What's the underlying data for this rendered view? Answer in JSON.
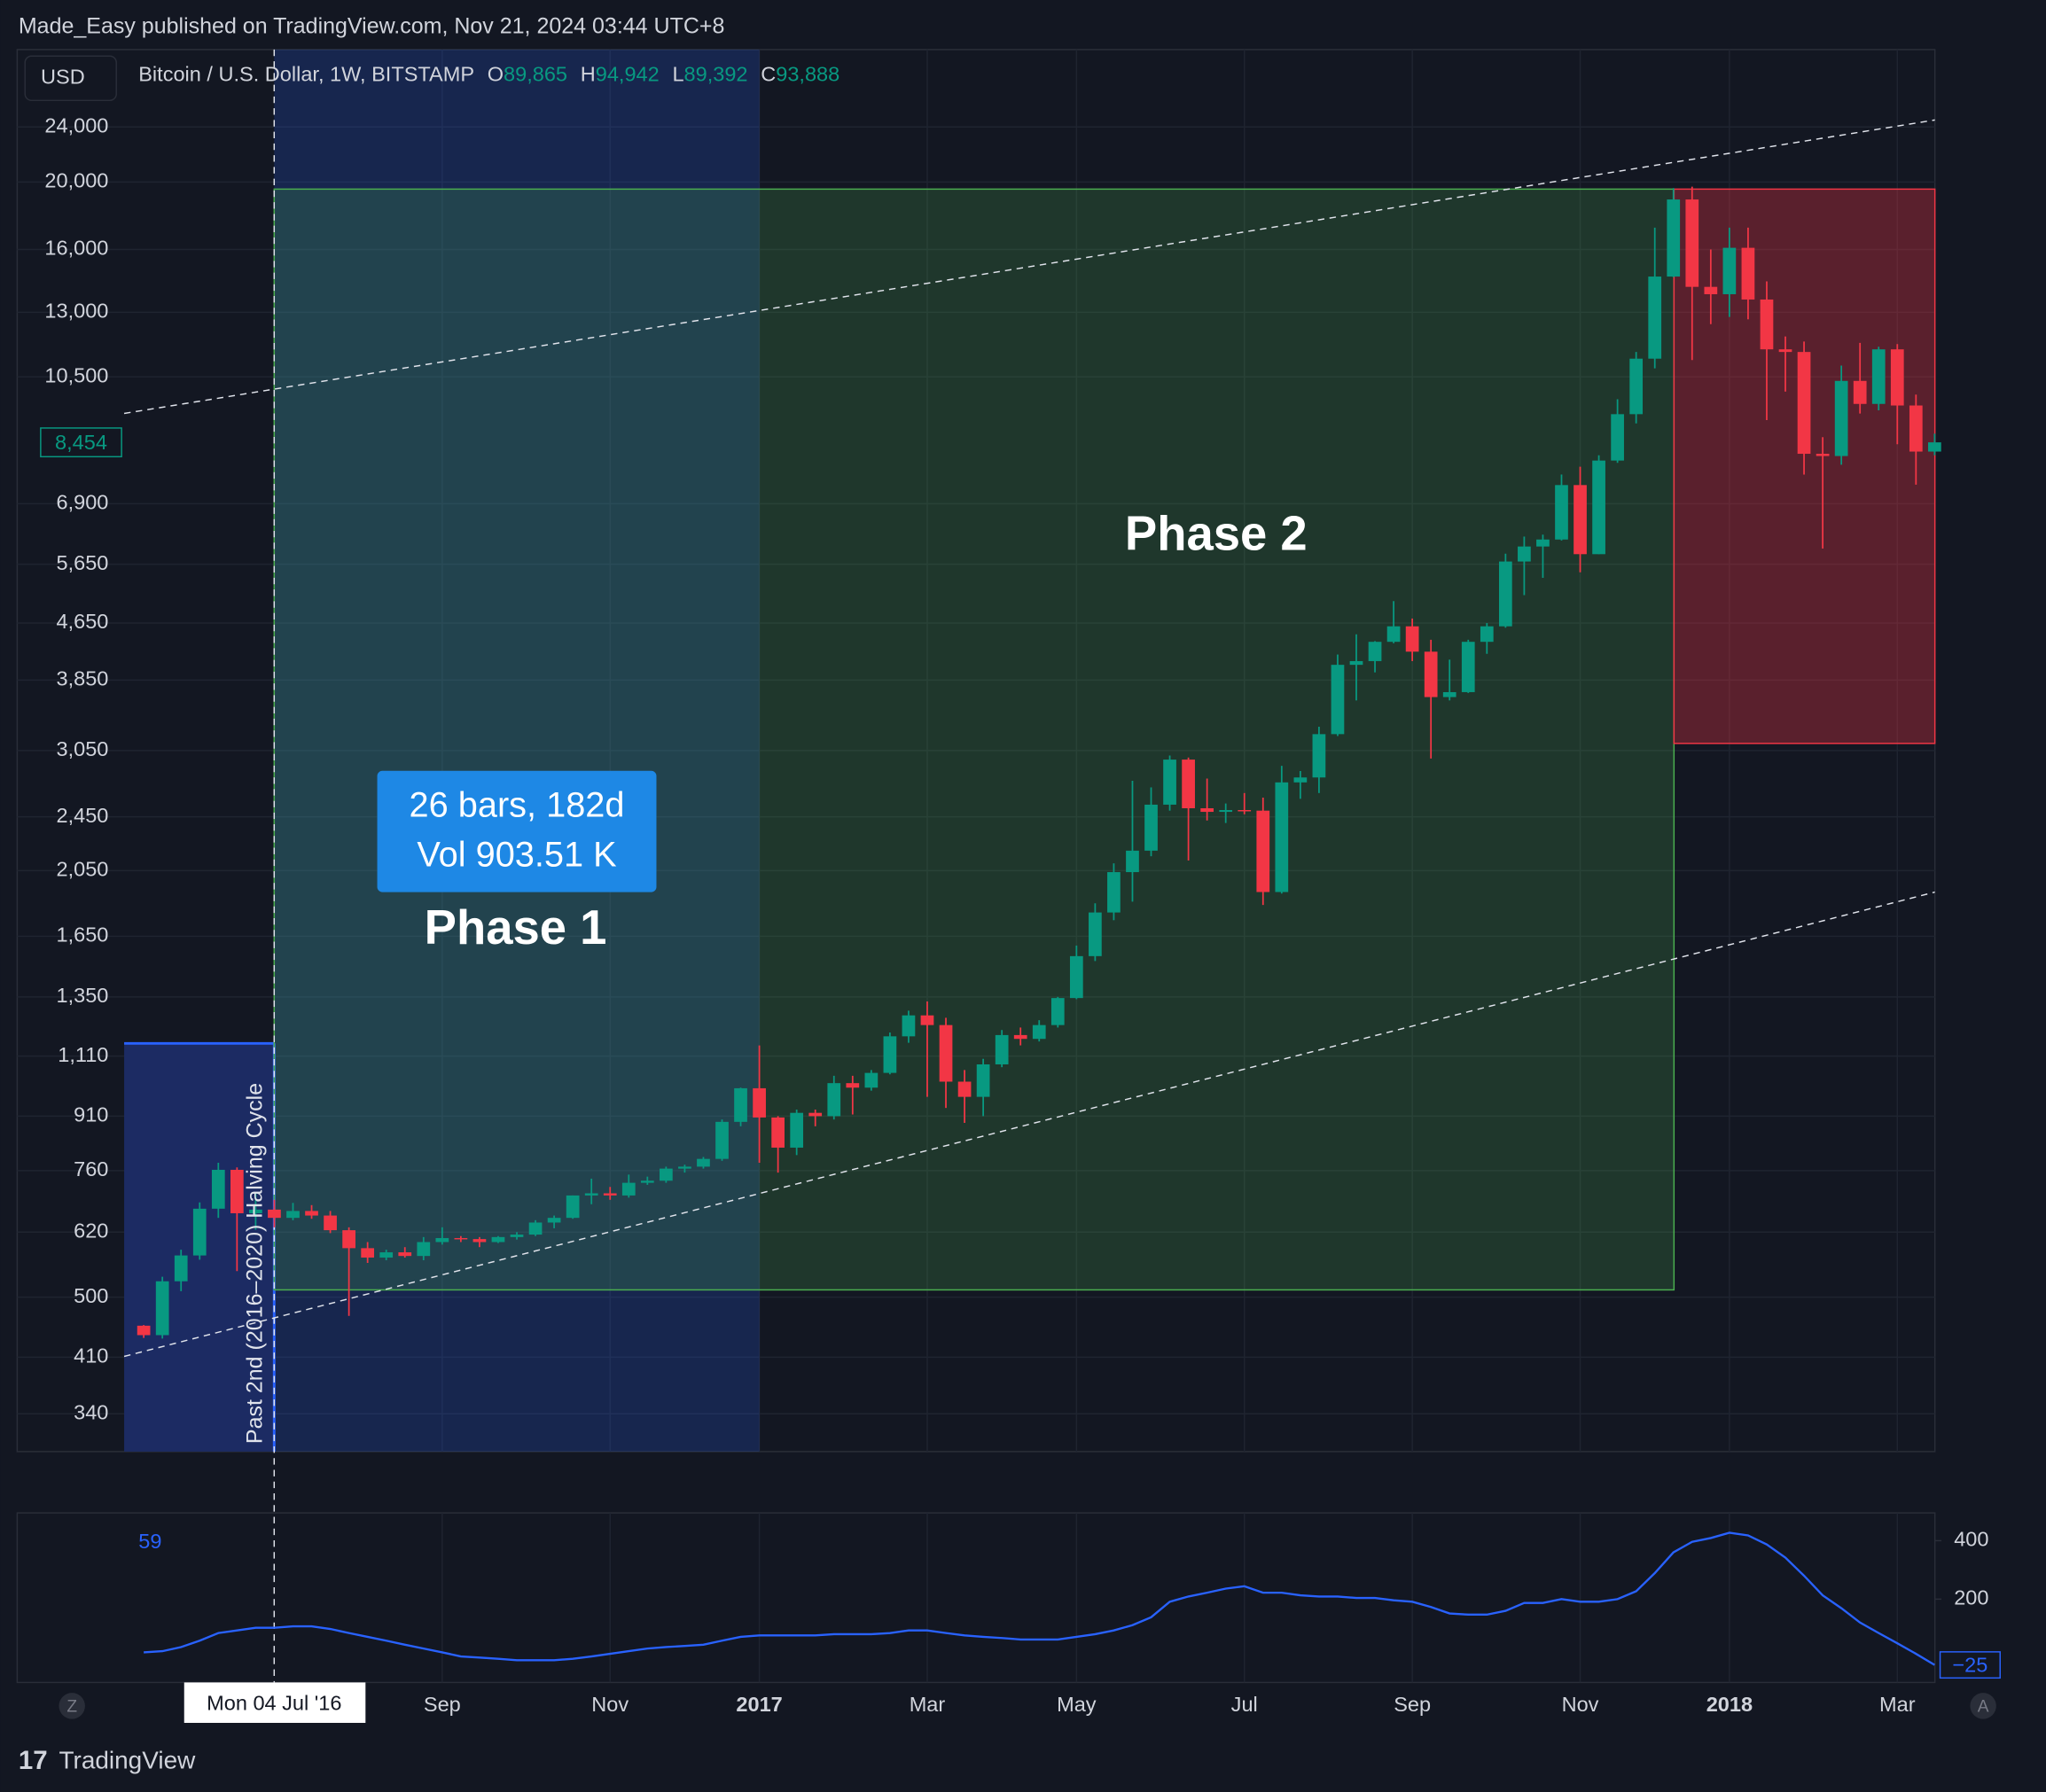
{
  "header": {
    "publisher": "Made_Easy published on TradingView.com, Nov 21, 2024 03:44 UTC+8",
    "currency": "USD",
    "symbol": "Bitcoin / U.S. Dollar, 1W, BITSTAMP",
    "ohlc": [
      {
        "key": "O",
        "value": "89,865"
      },
      {
        "key": "H",
        "value": "94,942"
      },
      {
        "key": "L",
        "value": "89,392"
      },
      {
        "key": "C",
        "value": "93,888"
      }
    ]
  },
  "measure": {
    "line1": "26 bars, 182d",
    "line2": "Vol 903.51 K"
  },
  "annotations": [
    "Phase 1",
    "Phase 2",
    "Past 2nd (2016–2020) Halving Cycle"
  ],
  "crosshair_date": "Mon 04 Jul '16",
  "indicator_legend": "59",
  "buttons": [
    "Z",
    "A"
  ],
  "footer": "TradingView",
  "chart_data": [
    {
      "type": "candlestick",
      "log_scale": true,
      "grid": true,
      "up_color": "#089981",
      "down_color": "#f23645",
      "ylim": [
        300,
        31000
      ],
      "yticks": [
        {
          "value": 24000,
          "label": "24,000"
        },
        {
          "value": 20000,
          "label": "20,000"
        },
        {
          "value": 16000,
          "label": "16,000"
        },
        {
          "value": 13000,
          "label": "13,000"
        },
        {
          "value": 10500,
          "label": "10,500"
        },
        {
          "value": 6900,
          "label": "6,900"
        },
        {
          "value": 5650,
          "label": "5,650"
        },
        {
          "value": 4650,
          "label": "4,650"
        },
        {
          "value": 3850,
          "label": "3,850"
        },
        {
          "value": 3050,
          "label": "3,050"
        },
        {
          "value": 2450,
          "label": "2,450"
        },
        {
          "value": 2050,
          "label": "2,050"
        },
        {
          "value": 1650,
          "label": "1,650"
        },
        {
          "value": 1350,
          "label": "1,350"
        },
        {
          "value": 1110,
          "label": "1,110"
        },
        910,
        760,
        620,
        500,
        410,
        340
      ],
      "x_labels": [
        "Sep",
        "Nov",
        "2017",
        "Mar",
        "May",
        "Jul",
        "Sep",
        "Nov",
        "2018",
        "Mar"
      ],
      "last_value_label": "8,454",
      "open": [
        455,
        441,
        527,
        574,
        670,
        762,
        660,
        668,
        650,
        665,
        655,
        624,
        588,
        570,
        580,
        573,
        600,
        608,
        606,
        600,
        610,
        615,
        640,
        650,
        700,
        705,
        700,
        730,
        735,
        765,
        770,
        790,
        893,
        998,
        906,
        820,
        920,
        910,
        1015,
        1000,
        1050,
        1185,
        1270,
        1230,
        1020,
        970,
        1080,
        1190,
        1175,
        1230,
        1345,
        1545,
        1785,
        2040,
        2190,
        2550,
        2960,
        2520,
        2490,
        2505,
        2500,
        1910,
        2745,
        2790,
        3220,
        4050,
        4100,
        4370,
        4600,
        4230,
        3640,
        3700,
        4370,
        4600,
        5700,
        5990,
        6130,
        7340,
        5840,
        7960,
        9280,
        11150,
        14630,
        18880,
        14140,
        13800,
        16090,
        13560,
        11500,
        11400,
        8140,
        8080,
        10360,
        9600,
        11500,
        9550,
        8200
      ],
      "high": [
        456,
        535,
        585,
        684,
        780,
        768,
        705,
        690,
        683,
        678,
        665,
        630,
        600,
        585,
        590,
        610,
        630,
        612,
        610,
        612,
        620,
        645,
        655,
        700,
        740,
        720,
        750,
        745,
        770,
        775,
        795,
        900,
        1000,
        1150,
        910,
        930,
        930,
        1040,
        1040,
        1060,
        1200,
        1290,
        1330,
        1260,
        1060,
        1100,
        1210,
        1220,
        1250,
        1350,
        1600,
        1840,
        2100,
        2760,
        2700,
        3000,
        2980,
        2780,
        2560,
        2650,
        2610,
        2900,
        2850,
        3300,
        4190,
        4480,
        4380,
        5000,
        4720,
        4400,
        4120,
        4400,
        4650,
        5850,
        6190,
        6230,
        7600,
        7800,
        8100,
        9750,
        11400,
        17200,
        19600,
        19700,
        16000,
        17200,
        17200,
        14400,
        12000,
        11800,
        8600,
        10900,
        11750,
        11600,
        11700,
        9900,
        8700
      ],
      "low": [
        437,
        436,
        510,
        566,
        650,
        545,
        625,
        630,
        645,
        648,
        618,
        470,
        560,
        565,
        570,
        565,
        595,
        600,
        590,
        598,
        605,
        612,
        628,
        648,
        680,
        690,
        695,
        725,
        730,
        755,
        765,
        785,
        880,
        780,
        755,
        800,
        880,
        900,
        915,
        990,
        1045,
        1160,
        970,
        935,
        890,
        910,
        1070,
        1150,
        1165,
        1220,
        1340,
        1520,
        1740,
        1850,
        2150,
        2500,
        2120,
        2420,
        2400,
        2470,
        1830,
        1900,
        2600,
        2650,
        3200,
        3600,
        3950,
        4350,
        4100,
        2970,
        3600,
        3690,
        4200,
        4580,
        5100,
        5400,
        6110,
        5500,
        5840,
        7900,
        9000,
        10800,
        14600,
        11100,
        12500,
        12800,
        12700,
        9100,
        10000,
        7600,
        5950,
        7850,
        9300,
        9400,
        8400,
        7350,
        8100
      ],
      "close": [
        441,
        527,
        574,
        670,
        762,
        660,
        668,
        650,
        665,
        655,
        624,
        588,
        570,
        580,
        573,
        600,
        608,
        606,
        600,
        610,
        615,
        640,
        650,
        700,
        705,
        700,
        730,
        735,
        765,
        770,
        790,
        893,
        998,
        906,
        820,
        920,
        910,
        1015,
        1000,
        1050,
        1185,
        1270,
        1230,
        1020,
        970,
        1080,
        1190,
        1175,
        1230,
        1345,
        1545,
        1785,
        2040,
        2190,
        2550,
        2960,
        2520,
        2490,
        2505,
        2500,
        1910,
        2745,
        2790,
        3220,
        4050,
        4100,
        4370,
        4600,
        4230,
        3640,
        3700,
        4370,
        4600,
        5700,
        5990,
        6130,
        7340,
        5840,
        7960,
        9280,
        11150,
        14630,
        18880,
        14140,
        13800,
        16090,
        13560,
        11500,
        11400,
        8140,
        8080,
        10360,
        9600,
        11500,
        9550,
        8200,
        8454
      ]
    },
    {
      "type": "line",
      "color": "#2962ff",
      "ylim": [
        -85,
        495
      ],
      "yticks": [
        400,
        200
      ],
      "last_value_label": "−25",
      "values": [
        18,
        22,
        36,
        58,
        84,
        93,
        102,
        102,
        107,
        107,
        98,
        84,
        71,
        58,
        44,
        31,
        18,
        4,
        0,
        -4,
        -9,
        -9,
        -9,
        -4,
        4,
        13,
        22,
        31,
        36,
        40,
        44,
        58,
        71,
        76,
        76,
        76,
        76,
        80,
        80,
        80,
        84,
        93,
        93,
        84,
        76,
        71,
        67,
        62,
        62,
        62,
        71,
        80,
        93,
        111,
        138,
        191,
        209,
        222,
        236,
        244,
        222,
        222,
        213,
        209,
        209,
        204,
        204,
        196,
        191,
        173,
        151,
        147,
        147,
        160,
        187,
        187,
        200,
        191,
        191,
        200,
        227,
        289,
        360,
        396,
        409,
        427,
        418,
        387,
        342,
        280,
        213,
        169,
        120,
        84,
        49,
        13,
        -25
      ]
    }
  ]
}
